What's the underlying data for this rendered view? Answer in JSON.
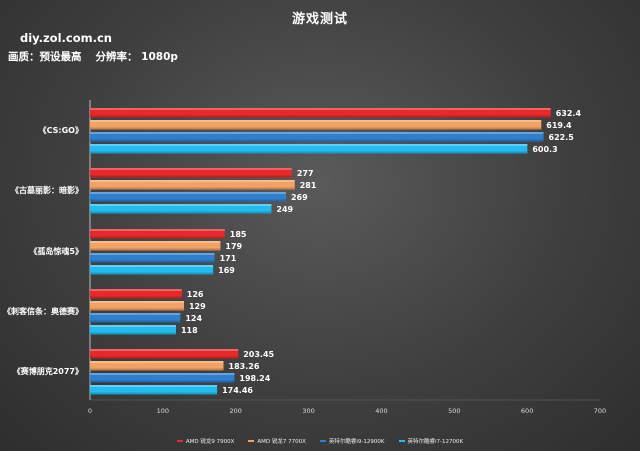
{
  "title": "游戏测试",
  "site": "diy.zol.com.cn",
  "settings": {
    "quality": "画质：预设最高",
    "resolution": "分辨率： 1080p"
  },
  "chart_data": {
    "type": "bar",
    "orientation": "horizontal",
    "title": "游戏测试",
    "categories": [
      "《CS:GO》",
      "《古墓丽影：暗影》",
      "《孤岛惊魂5》",
      "《刺客信条：奥德赛》",
      "《赛博朋克2077》"
    ],
    "series": [
      {
        "name": "AMD 锐龙9 7900X",
        "color": "#e8282b",
        "values": [
          632.4,
          277,
          185,
          126,
          203.45
        ]
      },
      {
        "name": "AMD 锐龙7 7700X",
        "color": "#f2a263",
        "values": [
          619.4,
          281,
          179,
          129,
          183.26
        ]
      },
      {
        "name": "英特尔酷睿i9-12900K",
        "color": "#2f7fcf",
        "values": [
          622.5,
          269,
          171,
          124,
          198.24
        ]
      },
      {
        "name": "英特尔酷睿i7-12700K",
        "color": "#22bdf0",
        "values": [
          600.3,
          249,
          169,
          118,
          174.46
        ]
      }
    ],
    "value_labels": [
      [
        "632.4",
        "277",
        "185",
        "126",
        "203.45"
      ],
      [
        "619.4",
        "281",
        "179",
        "129",
        "183.26"
      ],
      [
        "622.5",
        "269",
        "171",
        "124",
        "198.24"
      ],
      [
        "600.3",
        "249",
        "169",
        "118",
        "174.46"
      ]
    ],
    "xlim": [
      0,
      700
    ],
    "xticks": [
      0,
      100,
      200,
      300,
      400,
      500,
      600,
      700
    ],
    "grid": false,
    "legend_position": "bottom"
  }
}
